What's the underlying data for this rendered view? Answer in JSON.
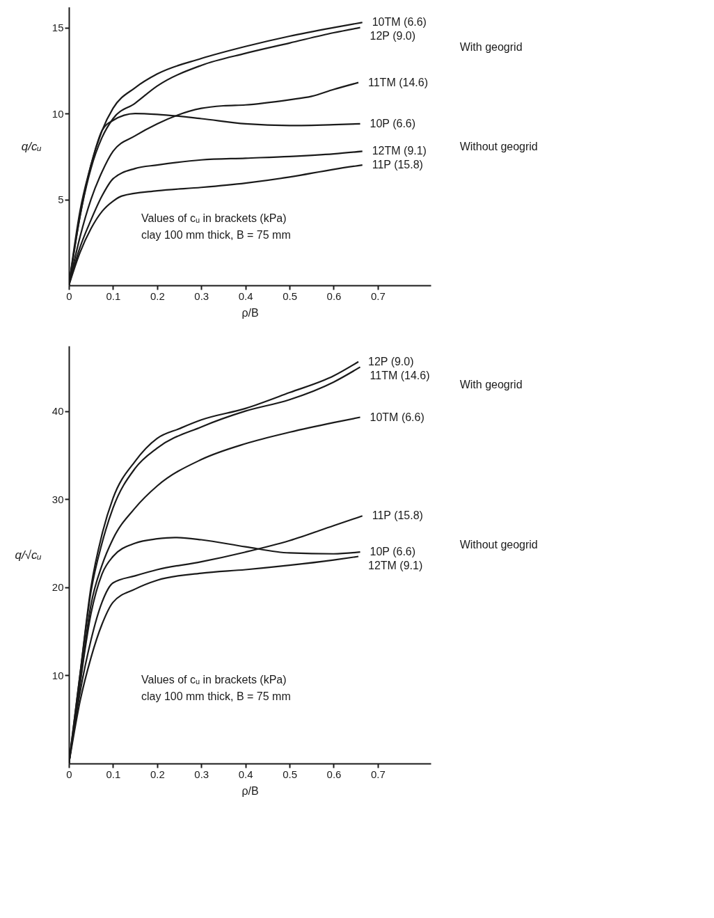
{
  "chart_data": [
    {
      "type": "line",
      "xlabel": "ρ/B",
      "ylabel": "q/cᵤ",
      "xlim": [
        0,
        0.82
      ],
      "ylim": [
        0,
        16.2
      ],
      "xticks": [
        0,
        0.1,
        0.2,
        0.3,
        0.4,
        0.5,
        0.6,
        0.7
      ],
      "yticks": [
        5,
        10,
        15
      ],
      "grid": false,
      "annotations": [
        "With geogrid",
        "Without geogrid",
        "Values of cᵤ in brackets (kPa)",
        "clay 100 mm thick, B = 75 mm"
      ],
      "series": [
        {
          "name": "10TM (6.6)",
          "color": "#1a1a1a",
          "x": [
            0,
            0.025,
            0.05,
            0.075,
            0.1,
            0.15,
            0.2,
            0.3,
            0.4,
            0.5,
            0.6,
            0.665
          ],
          "values": [
            0,
            4.0,
            7.0,
            9.0,
            10.3,
            11.5,
            12.3,
            13.2,
            13.9,
            14.5,
            15.0,
            15.3
          ]
        },
        {
          "name": "12P (9.0)",
          "color": "#1a1a1a",
          "x": [
            0,
            0.025,
            0.05,
            0.075,
            0.1,
            0.15,
            0.2,
            0.3,
            0.4,
            0.5,
            0.6,
            0.66
          ],
          "values": [
            0,
            4.0,
            6.8,
            8.6,
            9.7,
            10.6,
            11.6,
            12.8,
            13.5,
            14.1,
            14.7,
            15.0
          ]
        },
        {
          "name": "11TM (14.6)",
          "color": "#1a1a1a",
          "x": [
            0,
            0.025,
            0.05,
            0.075,
            0.1,
            0.15,
            0.2,
            0.3,
            0.35,
            0.4,
            0.5,
            0.55,
            0.6,
            0.656
          ],
          "values": [
            0,
            2.8,
            5.0,
            6.6,
            7.8,
            8.7,
            9.4,
            10.3,
            10.45,
            10.5,
            10.8,
            11.0,
            11.4,
            11.8
          ]
        },
        {
          "name": "10P (6.6)",
          "color": "#1a1a1a",
          "x": [
            0,
            0.025,
            0.05,
            0.075,
            0.1,
            0.15,
            0.2,
            0.3,
            0.4,
            0.5,
            0.6,
            0.66
          ],
          "values": [
            0,
            4.3,
            7.0,
            9.0,
            9.6,
            10.0,
            9.95,
            9.7,
            9.4,
            9.3,
            9.35,
            9.4
          ]
        },
        {
          "name": "12TM (9.1)",
          "color": "#1a1a1a",
          "x": [
            0,
            0.025,
            0.05,
            0.075,
            0.1,
            0.15,
            0.2,
            0.3,
            0.4,
            0.5,
            0.6,
            0.665
          ],
          "values": [
            0,
            2.2,
            3.8,
            5.2,
            6.2,
            6.8,
            7.0,
            7.3,
            7.4,
            7.5,
            7.65,
            7.8
          ]
        },
        {
          "name": "11P (15.8)",
          "color": "#1a1a1a",
          "x": [
            0,
            0.025,
            0.05,
            0.075,
            0.1,
            0.12,
            0.2,
            0.3,
            0.4,
            0.5,
            0.6,
            0.665
          ],
          "values": [
            0,
            1.9,
            3.3,
            4.3,
            4.9,
            5.2,
            5.5,
            5.7,
            5.95,
            6.3,
            6.75,
            7.0
          ]
        }
      ]
    },
    {
      "type": "line",
      "xlabel": "ρ/B",
      "ylabel": "q/√cᵤ",
      "xlim": [
        0,
        0.82
      ],
      "ylim": [
        0,
        47.4
      ],
      "xticks": [
        0,
        0.1,
        0.2,
        0.3,
        0.4,
        0.5,
        0.6,
        0.7
      ],
      "yticks": [
        10,
        20,
        30,
        40
      ],
      "grid": false,
      "annotations": [
        "With geogrid",
        "Without geogrid",
        "Values of cᵤ in brackets (kPa)",
        "clay 100 mm thick, B = 75 mm"
      ],
      "series": [
        {
          "name": "12P (9.0)",
          "color": "#1a1a1a",
          "x": [
            0,
            0.025,
            0.05,
            0.075,
            0.1,
            0.15,
            0.2,
            0.25,
            0.3,
            0.4,
            0.5,
            0.6,
            0.656
          ],
          "values": [
            0,
            10,
            20,
            26,
            30.1,
            34.3,
            36.9,
            38.0,
            39.0,
            40.3,
            42.1,
            44.0,
            45.6
          ]
        },
        {
          "name": "11TM (14.6)",
          "color": "#1a1a1a",
          "x": [
            0,
            0.025,
            0.05,
            0.075,
            0.1,
            0.15,
            0.2,
            0.3,
            0.4,
            0.5,
            0.6,
            0.66
          ],
          "values": [
            0,
            10,
            19.5,
            25,
            29.0,
            33.5,
            35.8,
            38.2,
            40.0,
            41.3,
            43.3,
            45.0
          ]
        },
        {
          "name": "10TM (6.6)",
          "color": "#1a1a1a",
          "x": [
            0,
            0.025,
            0.05,
            0.075,
            0.1,
            0.15,
            0.2,
            0.3,
            0.4,
            0.5,
            0.6,
            0.66
          ],
          "values": [
            0,
            9,
            18,
            22.5,
            25.5,
            29.0,
            31.5,
            34.5,
            36.3,
            37.6,
            38.7,
            39.3
          ]
        },
        {
          "name": "11P (15.8)",
          "color": "#1a1a1a",
          "x": [
            0,
            0.025,
            0.05,
            0.075,
            0.1,
            0.15,
            0.2,
            0.3,
            0.4,
            0.5,
            0.6,
            0.665
          ],
          "values": [
            0,
            8,
            14,
            18.3,
            20.5,
            21.3,
            22.0,
            22.9,
            24.0,
            25.3,
            27.0,
            28.1
          ]
        },
        {
          "name": "10P (6.6)",
          "color": "#1a1a1a",
          "x": [
            0,
            0.025,
            0.05,
            0.075,
            0.1,
            0.15,
            0.2,
            0.24,
            0.3,
            0.4,
            0.5,
            0.6,
            0.66
          ],
          "values": [
            0,
            9,
            17,
            21.5,
            23.5,
            25.0,
            25.5,
            25.65,
            25.4,
            24.6,
            23.9,
            23.8,
            24.0
          ]
        },
        {
          "name": "12TM (9.1)",
          "color": "#1a1a1a",
          "x": [
            0,
            0.025,
            0.05,
            0.075,
            0.1,
            0.15,
            0.2,
            0.3,
            0.4,
            0.5,
            0.6,
            0.656
          ],
          "values": [
            0,
            7,
            12,
            15.8,
            18.3,
            19.8,
            20.8,
            21.6,
            22.0,
            22.5,
            23.1,
            23.5
          ]
        }
      ]
    }
  ]
}
